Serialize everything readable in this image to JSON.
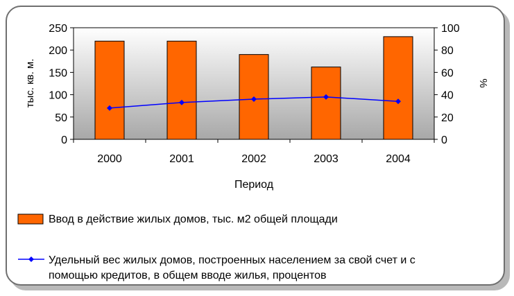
{
  "chart_data": {
    "type": "bar",
    "categories": [
      "2000",
      "2001",
      "2002",
      "2003",
      "2004"
    ],
    "series": [
      {
        "name": "Ввод в действие жилых домов, тыс. м2 общей площади",
        "type": "bar",
        "axis": "left",
        "color": "#ff6600",
        "values": [
          220,
          220,
          190,
          162,
          230
        ]
      },
      {
        "name": "Удельный вес жилых домов, построенных населением за свой счет и с помощью кредитов, в общем вводе жилья, процентов",
        "type": "line",
        "axis": "right",
        "color": "#0000ff",
        "values": [
          28,
          33,
          36,
          38,
          34
        ]
      }
    ],
    "xlabel": "Период",
    "ylabel": "тыс. кв. м.",
    "y2label": "%",
    "ylim": [
      0,
      250
    ],
    "y2lim": [
      0,
      100
    ],
    "yticks": [
      0,
      50,
      100,
      150,
      200,
      250
    ],
    "y2ticks": [
      0,
      20,
      40,
      60,
      80,
      100
    ],
    "grid": false,
    "plot_background": "#c0c0c0",
    "legend_position": "bottom"
  },
  "legend": {
    "bar_line1": "Ввод в действие жилых домов, тыс. м2 общей площади",
    "line_line1": "Удельный вес жилых домов, построенных населением за свой счет и с",
    "line_line2": "помощью кредитов, в общем вводе жилья, процентов"
  }
}
